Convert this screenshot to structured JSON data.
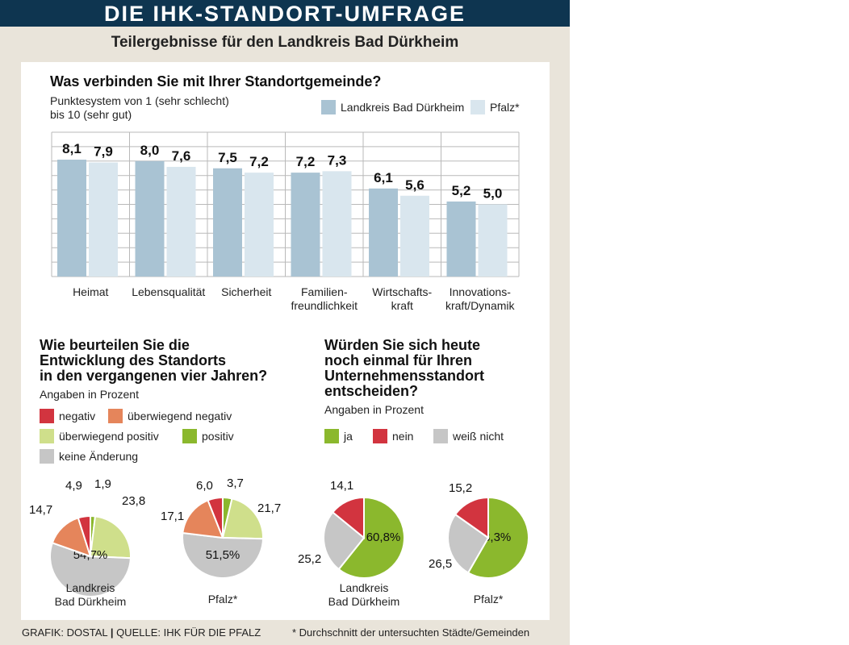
{
  "header": {
    "title": "DIE IHK-STANDORT-UMFRAGE",
    "subtitle": "Teilergebnisse für den Landkreis Bad Dürkheim"
  },
  "bar_section": {
    "title": "Was verbinden Sie mit Ihrer Standortgemeinde?",
    "note_line1": "Punktesystem von 1 (sehr schlecht)",
    "note_line2": "bis 10 (sehr gut)"
  },
  "development_section": {
    "title_lines": [
      "Wie beurteilen Sie die",
      "Entwicklung des Standorts",
      "in den vergangenen vier Jahren?"
    ],
    "unit": "Angaben in Prozent",
    "legend": [
      "negativ",
      "überwiegend negativ",
      "überwiegend positiv",
      "positiv",
      "keine Änderung"
    ]
  },
  "decision_section": {
    "title_lines": [
      "Würden Sie sich heute",
      "noch einmal für Ihren",
      "Unternehmensstandort",
      "entscheiden?"
    ],
    "unit": "Angaben in Prozent",
    "legend": [
      "ja",
      "nein",
      "weiß nicht"
    ]
  },
  "footer": {
    "credit_left": "GRAFIK: DOSTAL",
    "credit_right": "QUELLE: IHK FÜR DIE PFALZ",
    "note": "* Durchschnitt der untersuchten Städte/Gemeinden"
  },
  "colors": {
    "header_bg": "#0e3550",
    "panel_bg": "#e9e4da",
    "bar_landkreis": "#a9c3d3",
    "bar_pfalz": "#d9e6ee",
    "negativ": "#d2343f",
    "ueberwiegend_negativ": "#e5855b",
    "ueberwiegend_positiv": "#cfdf8b",
    "positiv": "#8bb82d",
    "keine_aenderung": "#c6c6c6",
    "ja": "#8bb82d",
    "nein": "#d2343f",
    "weiss_nicht": "#c6c6c6"
  },
  "chart_data": [
    {
      "type": "bar",
      "title": "Was verbinden Sie mit Ihrer Standortgemeinde?",
      "categories": [
        "Heimat",
        "Lebensqualität",
        "Sicherheit",
        "Familien-\nfreundlichkeit",
        "Wirtschafts-\nkraft",
        "Innovations-\nkraft/Dynamik"
      ],
      "series": [
        {
          "name": "Landkreis Bad Dürkheim",
          "values": [
            8.1,
            8.0,
            7.5,
            7.2,
            6.1,
            5.2
          ],
          "labels": [
            "8,1",
            "8,0",
            "7,5",
            "7,2",
            "6,1",
            "5,2"
          ]
        },
        {
          "name": "Pfalz*",
          "values": [
            7.9,
            7.6,
            7.2,
            7.3,
            5.6,
            5.0
          ],
          "labels": [
            "7,9",
            "7,6",
            "7,2",
            "7,3",
            "5,6",
            "5,0"
          ]
        }
      ],
      "ylim": [
        0,
        10
      ],
      "grid": true,
      "legend_position": "top-right"
    },
    {
      "type": "pie",
      "name": "Landkreis Bad Dürkheim",
      "label_lines": [
        "Landkreis",
        "Bad Dürkheim"
      ],
      "slices": [
        {
          "key": "positiv",
          "value": 1.9,
          "label": "1,9"
        },
        {
          "key": "ueberwiegend_positiv",
          "value": 23.8,
          "label": "23,8"
        },
        {
          "key": "keine_aenderung",
          "value": 54.7,
          "label": "54,7%"
        },
        {
          "key": "ueberwiegend_negativ",
          "value": 14.7,
          "label": "14,7"
        },
        {
          "key": "negativ",
          "value": 4.9,
          "label": "4,9"
        }
      ]
    },
    {
      "type": "pie",
      "name": "Pfalz*",
      "label_lines": [
        "Pfalz*"
      ],
      "slices": [
        {
          "key": "positiv",
          "value": 3.7,
          "label": "3,7"
        },
        {
          "key": "ueberwiegend_positiv",
          "value": 21.7,
          "label": "21,7"
        },
        {
          "key": "keine_aenderung",
          "value": 51.5,
          "label": "51,5%"
        },
        {
          "key": "ueberwiegend_negativ",
          "value": 17.1,
          "label": "17,1"
        },
        {
          "key": "negativ",
          "value": 6.0,
          "label": "6,0"
        }
      ]
    },
    {
      "type": "pie",
      "name": "Landkreis Bad Dürkheim",
      "label_lines": [
        "Landkreis",
        "Bad Dürkheim"
      ],
      "slices": [
        {
          "key": "ja",
          "value": 60.8,
          "label": "60,8%"
        },
        {
          "key": "weiss_nicht",
          "value": 25.2,
          "label": "25,2"
        },
        {
          "key": "nein",
          "value": 14.1,
          "label": "14,1"
        }
      ]
    },
    {
      "type": "pie",
      "name": "Pfalz*",
      "label_lines": [
        "Pfalz*"
      ],
      "slices": [
        {
          "key": "ja",
          "value": 58.3,
          "label": "58,3%"
        },
        {
          "key": "weiss_nicht",
          "value": 26.5,
          "label": "26,5"
        },
        {
          "key": "nein",
          "value": 15.2,
          "label": "15,2"
        }
      ]
    }
  ]
}
